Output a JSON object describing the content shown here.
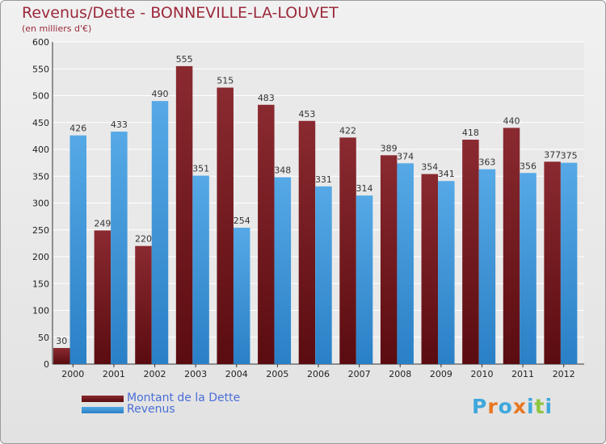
{
  "chart_data": {
    "type": "bar",
    "title": "Revenus/Dette - BONNEVILLE-LA-LOUVET",
    "subtitle": "(en milliers d'€)",
    "xlabel": "",
    "ylabel": "",
    "categories": [
      "2000",
      "2001",
      "2002",
      "2003",
      "2004",
      "2005",
      "2006",
      "2007",
      "2008",
      "2009",
      "2010",
      "2011",
      "2012"
    ],
    "series": [
      {
        "name": "Montant de la Dette",
        "color": "#7a1f24",
        "values": [
          30,
          249,
          220,
          555,
          515,
          483,
          453,
          422,
          389,
          354,
          418,
          440,
          377
        ]
      },
      {
        "name": "Revenus",
        "color": "#3c95d8",
        "values": [
          426,
          433,
          490,
          351,
          254,
          348,
          331,
          314,
          374,
          341,
          363,
          356,
          375
        ]
      }
    ],
    "ylim": [
      0,
      600
    ],
    "yticks": [
      0,
      50,
      100,
      150,
      200,
      250,
      300,
      350,
      400,
      450,
      500,
      550,
      600
    ],
    "grid": true,
    "legend_position": "bottom-left"
  },
  "logo": {
    "text": "Proxiti",
    "letter_colors": [
      "#3ea8dc",
      "#e87722",
      "#3ea8dc",
      "#e87722",
      "#3ea8dc",
      "#8dc63f",
      "#3ea8dc"
    ]
  }
}
